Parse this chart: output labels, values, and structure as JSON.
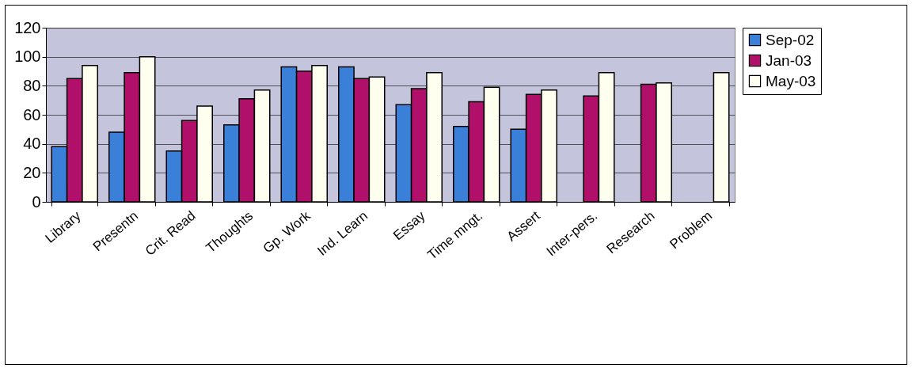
{
  "chart_data": {
    "type": "bar",
    "categories": [
      "Library",
      "Presentn",
      "Crit. Read",
      "Thoughts",
      "Gp. Work",
      "Ind. Learn",
      "Essay",
      "Time mngt.",
      "Assert",
      "Inter-pers.",
      "Research",
      "Problem"
    ],
    "series": [
      {
        "name": "Sep-02",
        "color": "#3a7fd8",
        "values": [
          38,
          48,
          35,
          53,
          93,
          93,
          67,
          52,
          50,
          null,
          null,
          null
        ]
      },
      {
        "name": "Jan-03",
        "color": "#b0106a",
        "values": [
          85,
          89,
          56,
          71,
          90,
          85,
          78,
          69,
          74,
          73,
          81,
          null
        ]
      },
      {
        "name": "May-03",
        "color": "#fffff0",
        "values": [
          94,
          100,
          66,
          77,
          94,
          86,
          89,
          79,
          77,
          89,
          82,
          89
        ]
      }
    ],
    "ylim": [
      0,
      120
    ],
    "yticks": [
      0,
      20,
      40,
      60,
      80,
      100,
      120
    ],
    "grid": "y",
    "legend": "right"
  }
}
